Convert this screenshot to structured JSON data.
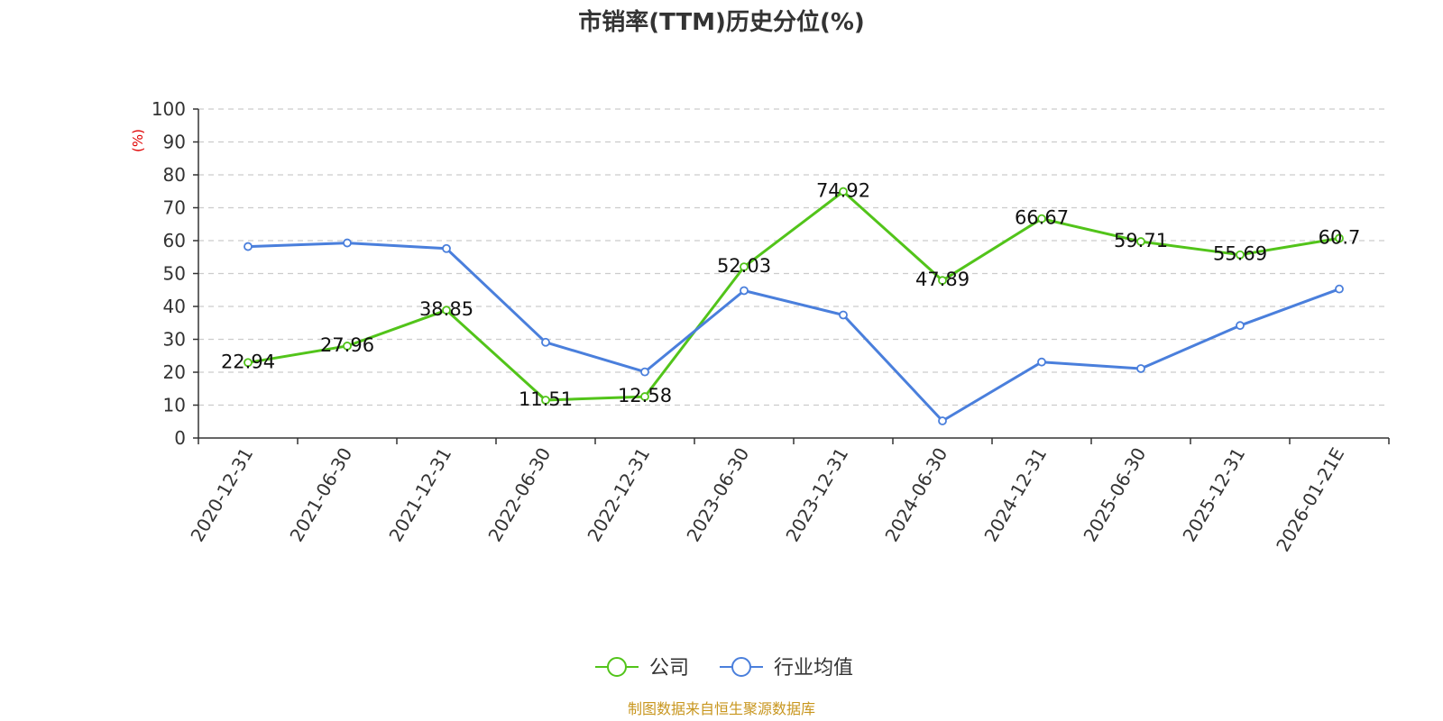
{
  "chart_data": {
    "type": "line",
    "title": "市销率(TTM)历史分位(%)",
    "ylabel": "(%)",
    "ylim": [
      0,
      100
    ],
    "yticks": [
      0,
      10,
      20,
      30,
      40,
      50,
      60,
      70,
      80,
      90,
      100
    ],
    "categories": [
      "2020-12-31",
      "2021-06-30",
      "2021-12-31",
      "2022-06-30",
      "2022-12-31",
      "2023-06-30",
      "2023-12-31",
      "2024-06-30",
      "2024-12-31",
      "2025-06-30",
      "2025-12-31",
      "2026-01-21E"
    ],
    "series": [
      {
        "name": "公司",
        "color": "#52c41a",
        "values": [
          22.94,
          27.96,
          38.85,
          11.51,
          12.58,
          52.03,
          74.92,
          47.89,
          66.67,
          59.71,
          55.69,
          60.7
        ],
        "labels": [
          "22.94",
          "27.96",
          "38.85",
          "11.51",
          "12.58",
          "52.03",
          "74.92",
          "47.89",
          "66.67",
          "59.71",
          "55.69",
          "60.7"
        ]
      },
      {
        "name": "行业均值",
        "color": "#4a7fdc",
        "values": [
          58.2,
          59.3,
          57.6,
          29.1,
          20.1,
          44.8,
          37.4,
          5.2,
          23.1,
          21.1,
          34.2,
          45.3
        ]
      }
    ],
    "grid": true,
    "legend_position": "bottom-center",
    "ylabel_color": "#e00000"
  },
  "source": {
    "text": "制图数据来自恒生聚源数据库",
    "color": "#c8961e"
  }
}
